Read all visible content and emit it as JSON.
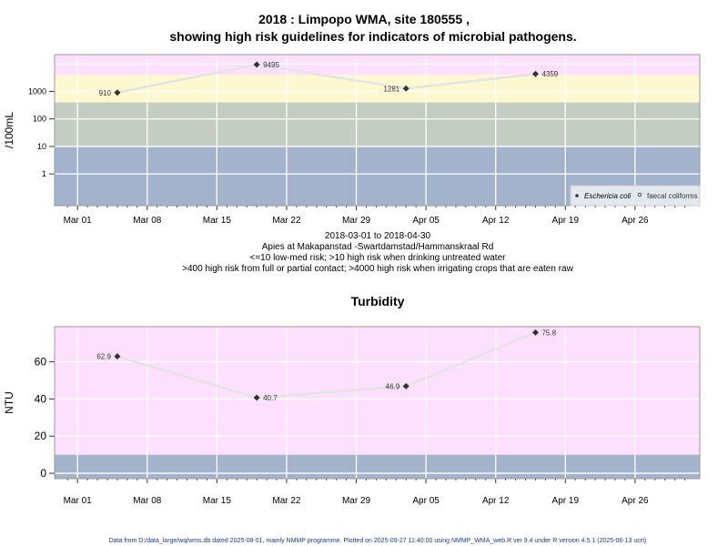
{
  "chart_data": [
    {
      "type": "line",
      "title": "2018 : Limpopo WMA, site 180555 ,",
      "subtitle": "showing high risk guidelines for indicators of microbial pathogens.",
      "ylabel": "/100mL",
      "yscale": "log",
      "yticks": [
        1,
        10,
        100,
        1000
      ],
      "ytick_labels": [
        "1",
        "10",
        "100",
        "1000"
      ],
      "ylim": [
        0.07,
        22000
      ],
      "xticks": [
        "Mar 01",
        "Mar 08",
        "Mar 15",
        "Mar 22",
        "Mar 29",
        "Apr 05",
        "Apr 12",
        "Apr 19",
        "Apr 26"
      ],
      "xlim_days_from_mar01": [
        -2.3,
        62.5
      ],
      "bands": [
        {
          "from": 0.07,
          "to": 10,
          "color": "#a2b3cb"
        },
        {
          "from": 10,
          "to": 400,
          "color": "#c3cdc1"
        },
        {
          "from": 400,
          "to": 4000,
          "color": "#fdf8d0"
        },
        {
          "from": 4000,
          "to": 22000,
          "color": "#fde0fd"
        }
      ],
      "series": [
        {
          "name": "Eschericia coli",
          "marker": "filled",
          "x_days_from_mar01": [
            4,
            18,
            33,
            46
          ],
          "values": [
            910,
            9495,
            1281,
            4359
          ],
          "labels": [
            "910",
            "9495",
            "1281",
            "4359"
          ]
        }
      ],
      "legend": {
        "position": "bottom-right",
        "entries": [
          "Eschericia coli",
          "faecal coliforms"
        ]
      },
      "xlabel_lines": [
        "2018-03-01 to 2018-04-30",
        "Apies at Makapanstad -Swartdamstad/Hammanskraal Rd",
        "<=10 low-med risk; >10 high risk when drinking untreated water",
        ">400 high risk from full or partial contact; >4000 high risk when irrigating crops that are eaten raw"
      ]
    },
    {
      "type": "line",
      "title": "Turbidity",
      "ylabel": "NTU",
      "yticks": [
        0,
        20,
        40,
        60
      ],
      "ytick_labels": [
        "0",
        "20",
        "40",
        "60"
      ],
      "ylim": [
        -2.9,
        78.9
      ],
      "xticks": [
        "Mar 01",
        "Mar 08",
        "Mar 15",
        "Mar 22",
        "Mar 29",
        "Apr 05",
        "Apr 12",
        "Apr 19",
        "Apr 26"
      ],
      "xlim_days_from_mar01": [
        -2.3,
        62.5
      ],
      "bands": [
        {
          "from": -2.9,
          "to": 10,
          "color": "#a2b3cb"
        },
        {
          "from": 10,
          "to": 78.9,
          "color": "#fde0fd"
        }
      ],
      "series": [
        {
          "name": "Turbidity",
          "x_days_from_mar01": [
            4,
            18,
            33,
            46
          ],
          "values": [
            62.9,
            40.7,
            46.9,
            75.8
          ],
          "labels": [
            "62.9",
            "40.7",
            "46.9",
            "75.8"
          ]
        }
      ]
    }
  ],
  "footer": "Data from D:/data_large/wq/wms.db dated 2025-08-01, mainly NMMP programme. Plotted on 2025-09-27 11:40:00 using NMMP_WMA_web.R ver 9.4 under R version 4.5.1 (2025-06-13 ucrt)"
}
